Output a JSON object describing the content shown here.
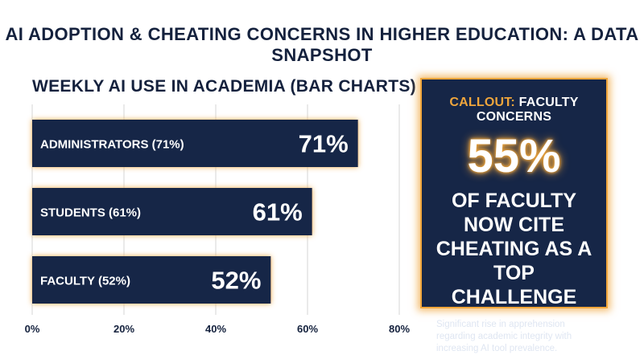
{
  "page": {
    "title": "AI ADOPTION & CHEATING CONCERNS IN HIGHER EDUCATION: A DATA SNAPSHOT"
  },
  "chart_data": {
    "type": "bar",
    "orientation": "horizontal",
    "title": "WEEKLY AI USE IN ACADEMIA (BAR CHARTS)",
    "categories": [
      "ADMINISTRATORS (71%)",
      "STUDENTS (61%)",
      "FACULTY (52%)"
    ],
    "values": [
      71,
      61,
      52
    ],
    "value_labels": [
      "71%",
      "61%",
      "52%"
    ],
    "xlim": [
      0,
      80
    ],
    "xticks": [
      0,
      20,
      40,
      60,
      80
    ],
    "xtick_labels": [
      "0%",
      "20%",
      "40%",
      "60%",
      "80%"
    ],
    "grid": true,
    "legend": "none",
    "colors": {
      "bar": "#162647",
      "glow": "#f0a63c",
      "grid": "#d6d6d6",
      "text": "#ffffff",
      "axis_text": "#14213d"
    }
  },
  "callout": {
    "prefix": "CALLOUT:",
    "topic": "FACULTY CONCERNS",
    "big_number": "55%",
    "statement": "OF FACULTY NOW CITE CHEATING AS A TOP CHALLENGE",
    "note": "Significant rise in apprehension regarding academic integrity with increasing AI tool prevalence.",
    "colors": {
      "background": "#162647",
      "accent": "#f0a63c"
    }
  }
}
